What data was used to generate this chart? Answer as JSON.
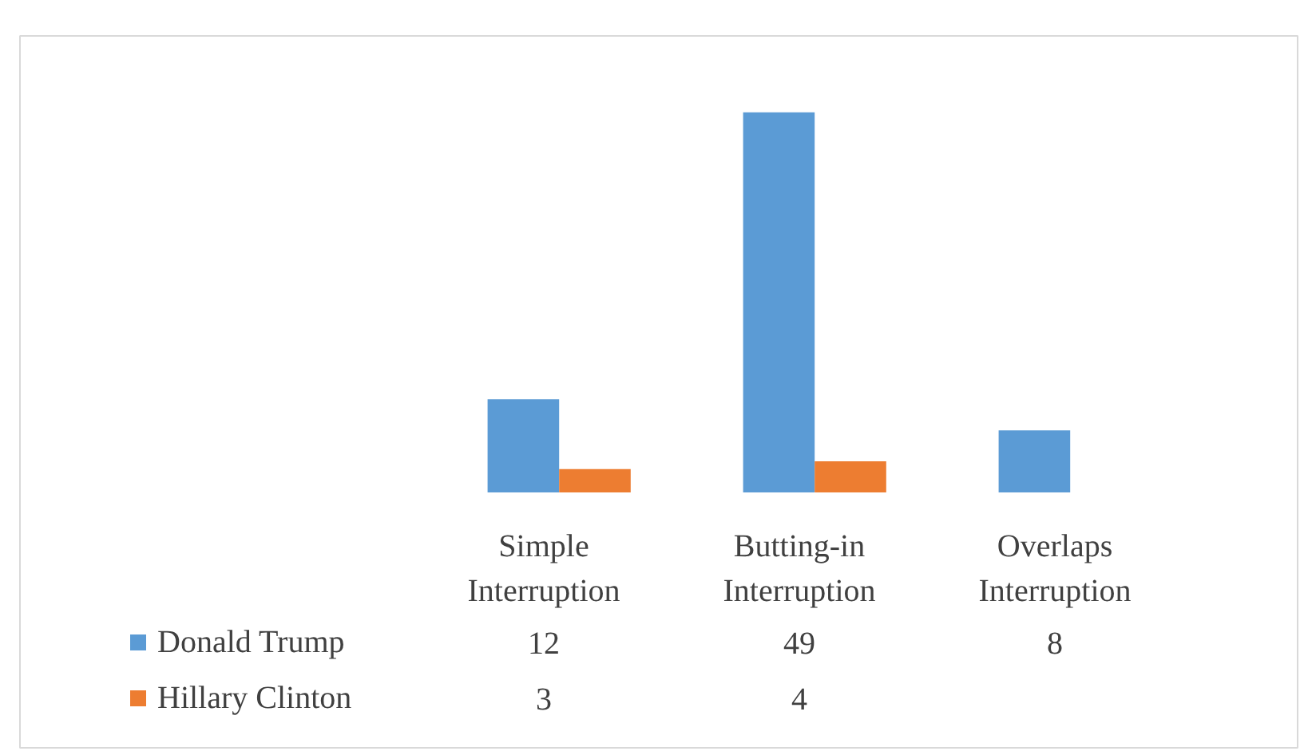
{
  "chart_data": {
    "type": "bar",
    "categories": [
      "Simple Interruption",
      "Butting-in Interruption",
      "Overlaps Interruption"
    ],
    "series": [
      {
        "name": "Donald Trump",
        "color": "#5b9bd5",
        "values": [
          12,
          49,
          8
        ]
      },
      {
        "name": "Hillary Clinton",
        "color": "#ed7d31",
        "values": [
          3,
          4,
          null
        ]
      }
    ],
    "data_labels": true,
    "legend": "bottom",
    "grid": false
  }
}
